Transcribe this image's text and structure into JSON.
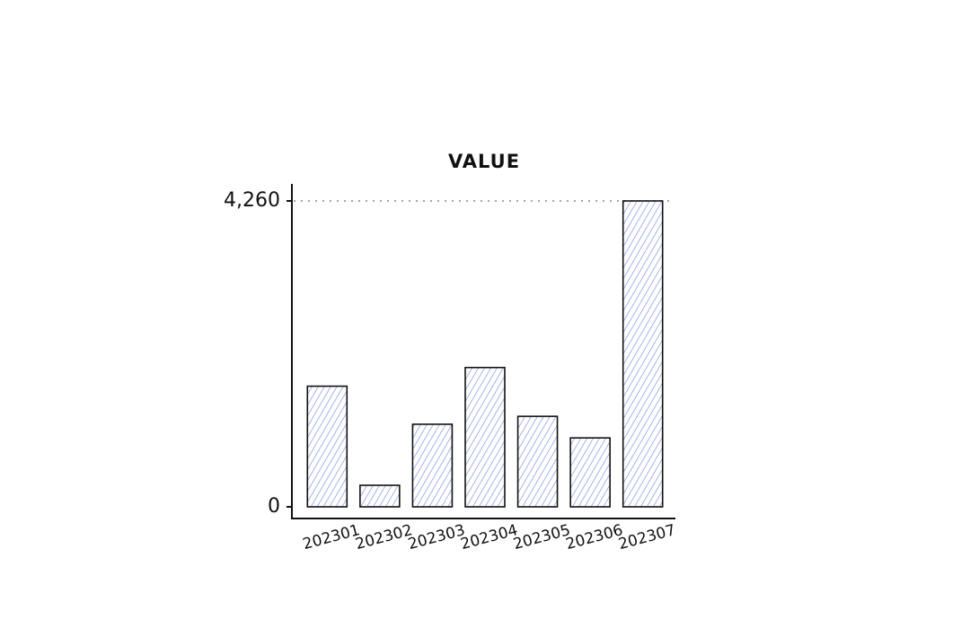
{
  "chart_data": {
    "type": "bar",
    "title": "VALUE",
    "categories": [
      "202301",
      "202302",
      "202303",
      "202304",
      "202305",
      "202306",
      "202307"
    ],
    "values": [
      1680,
      300,
      1150,
      1940,
      1260,
      960,
      4260
    ],
    "color": "#4a63d8",
    "ylim": [
      0,
      4260
    ],
    "yticks": [
      0,
      {
        "value": 4260,
        "label": "4,260"
      }
    ],
    "grid": true
  }
}
